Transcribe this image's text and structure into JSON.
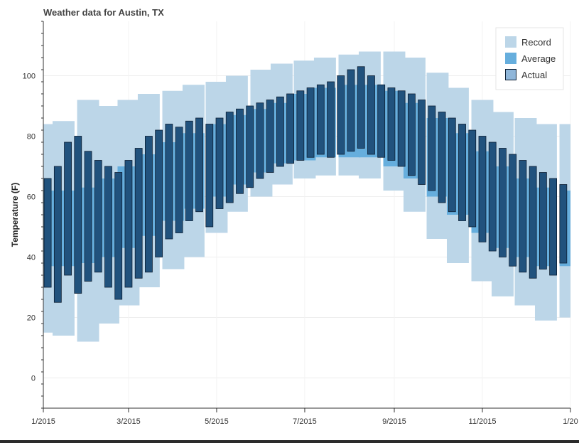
{
  "chart_data": {
    "type": "bar",
    "title": "Weather data for Austin, TX",
    "ylabel": "Temperature (F)",
    "xlabel": "",
    "xlim": [
      "2015-01-01",
      "2016-01-01"
    ],
    "ylim": [
      -10,
      118
    ],
    "grid": true,
    "legend_position": "top-right",
    "x_ticks": [
      {
        "date": "2015-01-01",
        "label": "1/2015"
      },
      {
        "date": "2015-03-01",
        "label": "3/2015"
      },
      {
        "date": "2015-05-01",
        "label": "5/2015"
      },
      {
        "date": "2015-07-01",
        "label": "7/2015"
      },
      {
        "date": "2015-09-01",
        "label": "9/2015"
      },
      {
        "date": "2015-11-01",
        "label": "11/2015"
      },
      {
        "date": "2016-01-01",
        "label": "1/20"
      }
    ],
    "y_ticks": [
      0,
      20,
      40,
      60,
      80,
      100
    ],
    "colors": {
      "record": "#bcd6e8",
      "average": "#66aedd",
      "actual": "#21527d",
      "actual_edge": "#0d1f33",
      "actual_legend": "#8fb6d9"
    },
    "series": [
      {
        "name": "Record",
        "note_shape": "daily low/high range",
        "x": [
          "2015-01-01",
          "2015-01-15",
          "2015-02-01",
          "2015-02-15",
          "2015-03-01",
          "2015-03-15",
          "2015-04-01",
          "2015-04-15",
          "2015-05-01",
          "2015-05-15",
          "2015-06-01",
          "2015-06-15",
          "2015-07-01",
          "2015-07-15",
          "2015-08-01",
          "2015-08-15",
          "2015-09-01",
          "2015-09-15",
          "2015-10-01",
          "2015-10-15",
          "2015-11-01",
          "2015-11-15",
          "2015-12-01",
          "2015-12-15",
          "2016-01-01"
        ],
        "low": [
          15,
          14,
          12,
          18,
          24,
          30,
          36,
          40,
          48,
          55,
          60,
          64,
          66,
          67,
          67,
          66,
          62,
          55,
          46,
          38,
          32,
          27,
          24,
          19,
          20
        ],
        "high": [
          84,
          85,
          92,
          90,
          92,
          94,
          95,
          97,
          98,
          100,
          102,
          104,
          105,
          106,
          107,
          108,
          108,
          106,
          101,
          96,
          92,
          88,
          86,
          84,
          84
        ]
      },
      {
        "name": "Average",
        "note_shape": "daily low/high range",
        "x": [
          "2015-01-01",
          "2015-01-15",
          "2015-02-01",
          "2015-02-15",
          "2015-03-01",
          "2015-03-15",
          "2015-04-01",
          "2015-04-15",
          "2015-05-01",
          "2015-05-15",
          "2015-06-01",
          "2015-06-15",
          "2015-07-01",
          "2015-07-15",
          "2015-08-01",
          "2015-08-15",
          "2015-09-01",
          "2015-09-15",
          "2015-10-01",
          "2015-10-15",
          "2015-11-01",
          "2015-11-15",
          "2015-12-01",
          "2015-12-15",
          "2016-01-01"
        ],
        "low": [
          37,
          37,
          38,
          40,
          43,
          47,
          52,
          56,
          60,
          64,
          68,
          71,
          72,
          73,
          73,
          73,
          70,
          66,
          60,
          54,
          48,
          43,
          40,
          37,
          37
        ],
        "high": [
          62,
          62,
          63,
          66,
          70,
          74,
          78,
          81,
          84,
          87,
          89,
          91,
          94,
          96,
          97,
          97,
          95,
          91,
          86,
          81,
          75,
          70,
          66,
          63,
          62
        ]
      },
      {
        "name": "Actual",
        "note_shape": "daily low/high range",
        "x": [
          "2015-01-04",
          "2015-01-11",
          "2015-01-18",
          "2015-01-25",
          "2015-02-01",
          "2015-02-08",
          "2015-02-15",
          "2015-02-22",
          "2015-03-01",
          "2015-03-08",
          "2015-03-15",
          "2015-03-22",
          "2015-03-29",
          "2015-04-05",
          "2015-04-12",
          "2015-04-19",
          "2015-04-26",
          "2015-05-03",
          "2015-05-10",
          "2015-05-17",
          "2015-05-24",
          "2015-05-31",
          "2015-06-07",
          "2015-06-14",
          "2015-06-21",
          "2015-06-28",
          "2015-07-05",
          "2015-07-12",
          "2015-07-19",
          "2015-07-26",
          "2015-08-02",
          "2015-08-09",
          "2015-08-16",
          "2015-08-23",
          "2015-08-30",
          "2015-09-06",
          "2015-09-13",
          "2015-09-20",
          "2015-09-27",
          "2015-10-04",
          "2015-10-11",
          "2015-10-18",
          "2015-10-25",
          "2015-11-01",
          "2015-11-08",
          "2015-11-15",
          "2015-11-22",
          "2015-11-29",
          "2015-12-06",
          "2015-12-13",
          "2015-12-20",
          "2015-12-27"
        ],
        "low": [
          30,
          25,
          34,
          28,
          32,
          35,
          30,
          26,
          30,
          33,
          35,
          40,
          46,
          48,
          52,
          55,
          50,
          56,
          58,
          61,
          63,
          66,
          68,
          70,
          71,
          72,
          73,
          74,
          73,
          74,
          75,
          76,
          74,
          73,
          72,
          70,
          67,
          64,
          62,
          58,
          55,
          52,
          50,
          45,
          42,
          40,
          37,
          35,
          33,
          36,
          34,
          38
        ],
        "high": [
          66,
          70,
          78,
          80,
          75,
          72,
          70,
          68,
          72,
          76,
          80,
          82,
          84,
          83,
          85,
          86,
          84,
          86,
          88,
          89,
          90,
          91,
          92,
          93,
          94,
          95,
          96,
          97,
          98,
          100,
          102,
          103,
          100,
          97,
          96,
          95,
          94,
          92,
          90,
          88,
          86,
          84,
          82,
          80,
          78,
          76,
          74,
          72,
          70,
          68,
          66,
          64
        ]
      }
    ]
  }
}
